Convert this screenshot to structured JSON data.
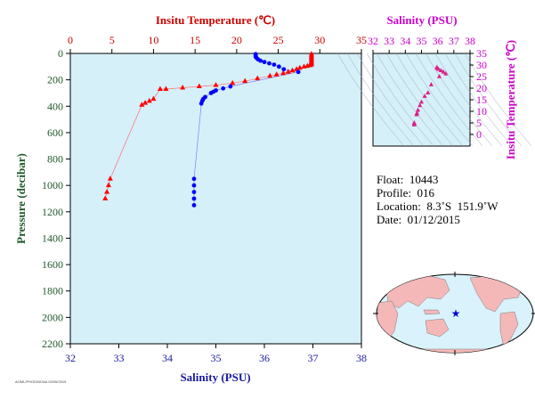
{
  "chart_data": [
    {
      "type": "line",
      "title": "",
      "top_axis_label": "Insitu Temperature (℃)",
      "bottom_axis_label": "Salinity (PSU)",
      "ylabel": "Pressure (decibar)",
      "temp_range": [
        0,
        35
      ],
      "temp_ticks": [
        "0",
        "5",
        "10",
        "15",
        "20",
        "25",
        "30",
        "35"
      ],
      "sal_range": [
        32,
        38
      ],
      "sal_ticks": [
        "32",
        "33",
        "34",
        "35",
        "36",
        "37",
        "38"
      ],
      "pressure_range": [
        0,
        2200
      ],
      "pressure_ticks": [
        "0",
        "200",
        "400",
        "600",
        "800",
        "1000",
        "1200",
        "1400",
        "1600",
        "1800",
        "2000",
        "2200"
      ],
      "grid": false,
      "series": [
        {
          "quantity": "temperature",
          "color": "#ff0000",
          "marker": "triangle",
          "points": [
            [
              29.0,
              5
            ],
            [
              29.0,
              15
            ],
            [
              29.0,
              25
            ],
            [
              29.0,
              35
            ],
            [
              29.0,
              45
            ],
            [
              29.0,
              55
            ],
            [
              29.0,
              65
            ],
            [
              29.0,
              75
            ],
            [
              29.0,
              85
            ],
            [
              28.8,
              90
            ],
            [
              28.5,
              95
            ],
            [
              28.1,
              100
            ],
            [
              27.6,
              110
            ],
            [
              27.2,
              120
            ],
            [
              26.7,
              130
            ],
            [
              26.2,
              140
            ],
            [
              25.6,
              150
            ],
            [
              24.8,
              160
            ],
            [
              24.0,
              170
            ],
            [
              22.5,
              190
            ],
            [
              21.0,
              210
            ],
            [
              19.5,
              225
            ],
            [
              17.5,
              240
            ],
            [
              15.5,
              250
            ],
            [
              13.5,
              260
            ],
            [
              11.5,
              270
            ],
            [
              10.8,
              270
            ],
            [
              10.0,
              345
            ],
            [
              9.5,
              360
            ],
            [
              9.0,
              375
            ],
            [
              8.6,
              390
            ],
            [
              4.8,
              950
            ],
            [
              4.6,
              1000
            ],
            [
              4.4,
              1050
            ],
            [
              4.2,
              1100
            ]
          ]
        },
        {
          "quantity": "salinity",
          "color": "#0000ff",
          "marker": "circle",
          "points": [
            [
              35.82,
              5
            ],
            [
              35.82,
              15
            ],
            [
              35.82,
              25
            ],
            [
              35.84,
              35
            ],
            [
              35.87,
              45
            ],
            [
              35.92,
              55
            ],
            [
              36.0,
              65
            ],
            [
              36.1,
              75
            ],
            [
              36.2,
              85
            ],
            [
              36.3,
              100
            ],
            [
              36.4,
              120
            ],
            [
              36.7,
              140
            ],
            [
              35.3,
              250
            ],
            [
              35.15,
              265
            ],
            [
              35.0,
              280
            ],
            [
              34.95,
              290
            ],
            [
              34.9,
              300
            ],
            [
              34.78,
              330
            ],
            [
              34.74,
              345
            ],
            [
              34.72,
              360
            ],
            [
              34.7,
              380
            ],
            [
              34.55,
              950
            ],
            [
              34.55,
              1000
            ],
            [
              34.55,
              1050
            ],
            [
              34.55,
              1100
            ],
            [
              34.55,
              1150
            ]
          ]
        }
      ]
    },
    {
      "type": "scatter",
      "title": "",
      "top_axis_label": "Salinity (PSU)",
      "right_axis_label": "Insitu Temperature (℃)",
      "sal_range": [
        32,
        38
      ],
      "sal_ticks": [
        "32",
        "33",
        "34",
        "35",
        "36",
        "37",
        "38"
      ],
      "temp_range": [
        -5,
        35
      ],
      "temp_ticks": [
        "0",
        "5",
        "10",
        "15",
        "20",
        "25",
        "30",
        "35"
      ],
      "color": "#dd2288",
      "points": [
        [
          35.95,
          29.0
        ],
        [
          35.97,
          28.6
        ],
        [
          36.05,
          28.2
        ],
        [
          36.2,
          27.6
        ],
        [
          36.35,
          27.0
        ],
        [
          36.5,
          26.2
        ],
        [
          36.1,
          25.0
        ],
        [
          35.6,
          21.5
        ],
        [
          35.4,
          18.0
        ],
        [
          35.2,
          16.5
        ],
        [
          35.0,
          14.0
        ],
        [
          34.9,
          12.5
        ],
        [
          34.78,
          10.5
        ],
        [
          34.72,
          9.2
        ],
        [
          34.7,
          8.6
        ],
        [
          34.55,
          5.0
        ],
        [
          34.55,
          4.6
        ],
        [
          34.55,
          4.2
        ]
      ]
    }
  ],
  "info": {
    "float": "Float:  10443",
    "profile": "Profile:  016",
    "location": "Location:  8.3˚S  151.9˚W",
    "date": "Date:  01/12/2015"
  },
  "map": {
    "float_lat": -8.3,
    "float_lon": -151.9,
    "ocean_color": "#d9f2fb",
    "land_color": "#f4b8b8",
    "marker_color": "#0000cc"
  },
  "credit": "AOML/PHOD/NOAA  02/06/2015"
}
